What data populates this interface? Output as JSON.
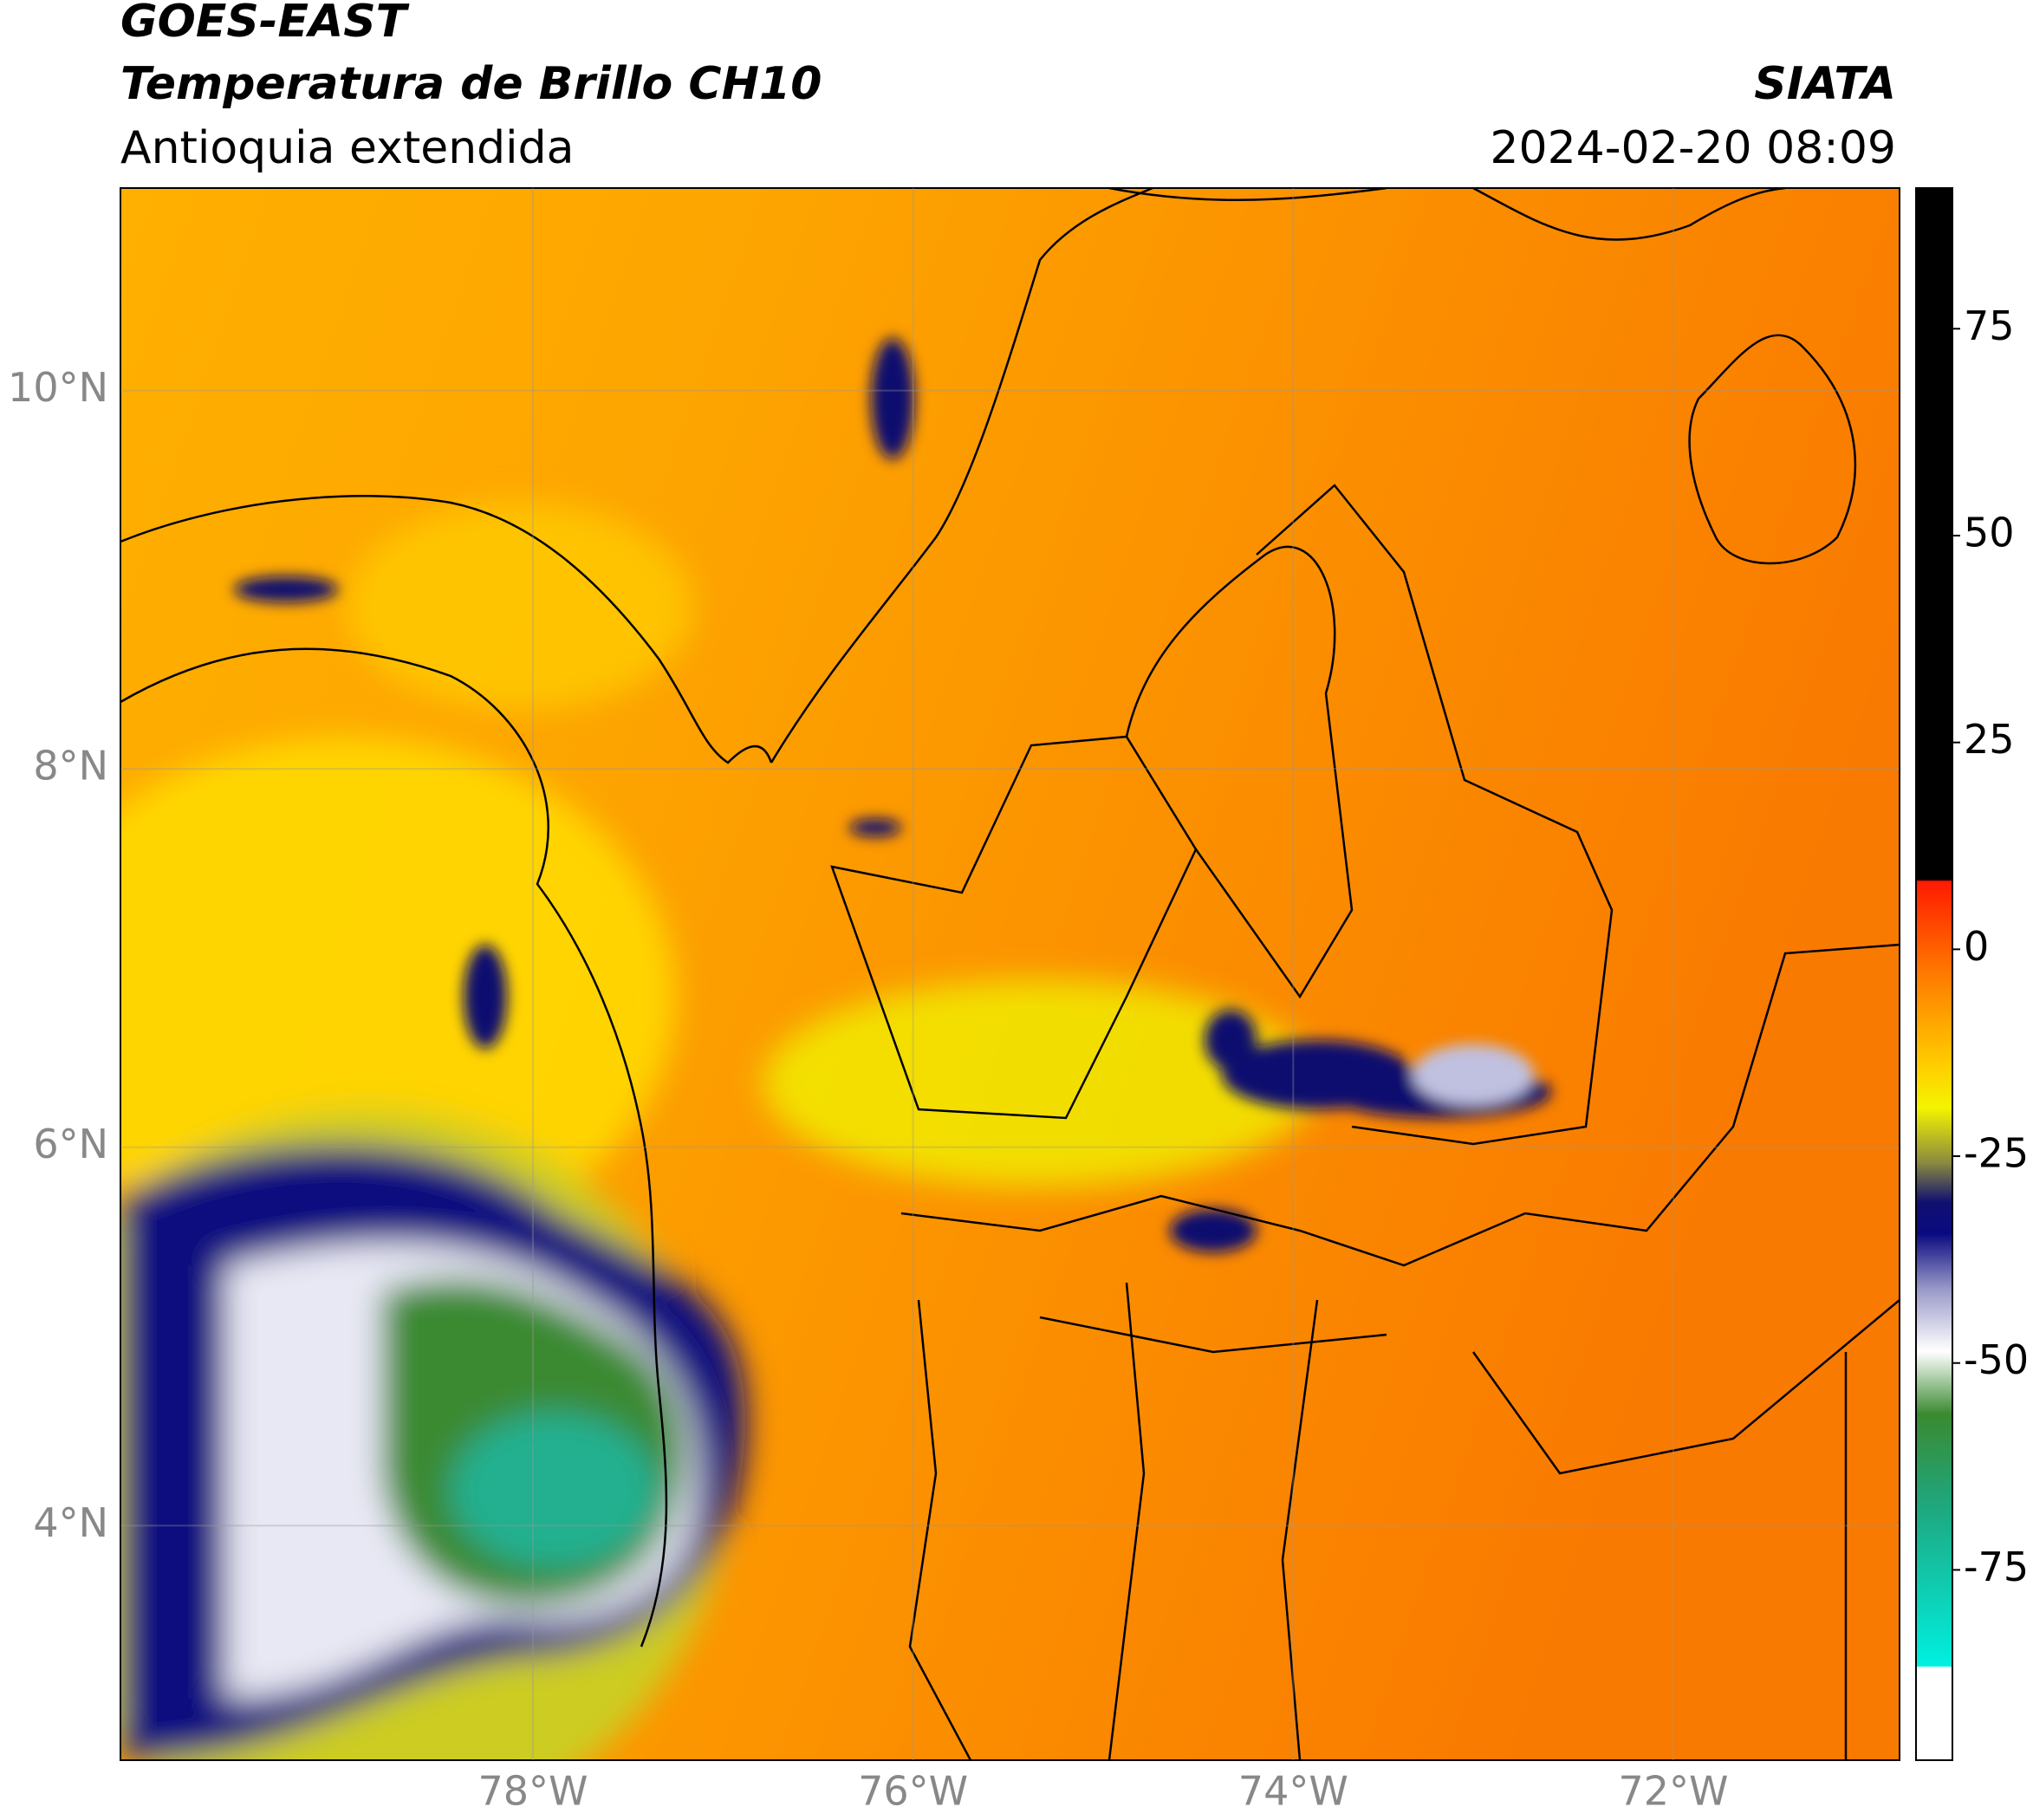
{
  "header": {
    "satellite": "GOES-EAST",
    "product": "Temperatura de Brillo CH10",
    "region": "Antioquia extendida",
    "agency": "SIATA",
    "datetime": "2024-02-20 08:09"
  },
  "map": {
    "lat_range": [
      2.76,
      11.07
    ],
    "lon_range": [
      -80.17,
      -70.81
    ],
    "lat_ticks": [
      {
        "value": 10,
        "label": "10°N"
      },
      {
        "value": 8,
        "label": "8°N"
      },
      {
        "value": 6,
        "label": "6°N"
      },
      {
        "value": 4,
        "label": "4°N"
      }
    ],
    "lon_ticks": [
      {
        "value": -78,
        "label": "78°W"
      },
      {
        "value": -76,
        "label": "76°W"
      },
      {
        "value": -74,
        "label": "74°W"
      },
      {
        "value": -72,
        "label": "72°W"
      }
    ]
  },
  "colorbar": {
    "range": [
      -98,
      92
    ],
    "ticks": [
      75,
      50,
      25,
      0,
      -25,
      -50,
      -75
    ]
  }
}
